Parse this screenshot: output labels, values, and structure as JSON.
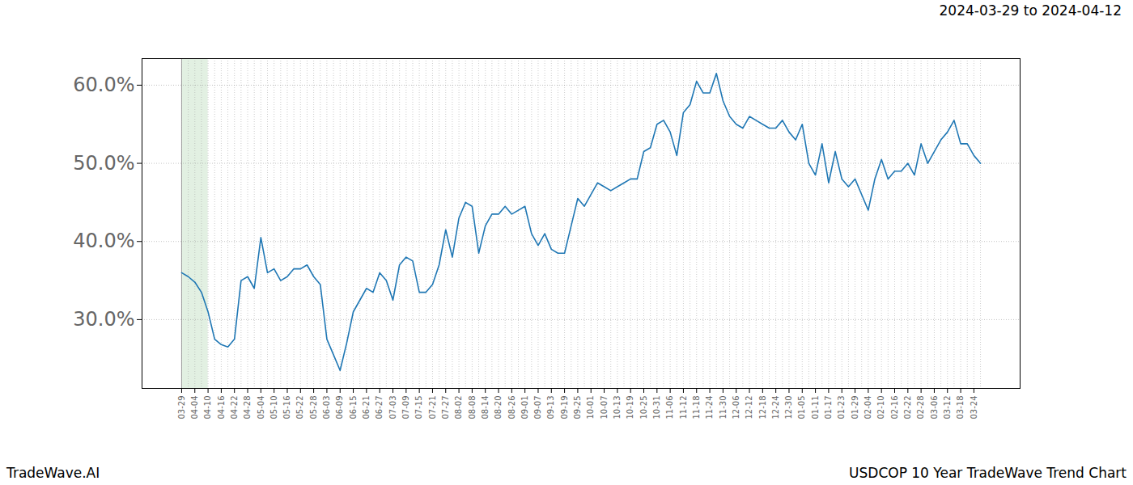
{
  "chart_data": {
    "type": "line",
    "title": "USDCOP 10 Year TradeWave Trend Chart",
    "subtitle": "2024-03-29 to 2024-04-12",
    "caption": "TradeWave.AI",
    "highlight_range": {
      "from": "03-29",
      "to": "04-10",
      "color": "#d5ead5"
    },
    "categories": [
      "03-29",
      null,
      "04-04",
      null,
      "04-10",
      null,
      "04-16",
      null,
      "04-22",
      null,
      "04-28",
      null,
      "05-04",
      null,
      "05-10",
      null,
      "05-16",
      null,
      "05-22",
      null,
      "05-28",
      null,
      "06-03",
      null,
      "06-09",
      null,
      "06-15",
      null,
      "06-21",
      null,
      "06-27",
      null,
      "07-03",
      null,
      "07-09",
      null,
      "07-15",
      null,
      "07-21",
      null,
      "07-27",
      null,
      "08-02",
      null,
      "08-08",
      null,
      "08-14",
      null,
      "08-20",
      null,
      "08-26",
      null,
      "09-01",
      null,
      "09-07",
      null,
      "09-13",
      null,
      "09-19",
      null,
      "09-25",
      null,
      "10-01",
      null,
      "10-07",
      null,
      "10-13",
      null,
      "10-19",
      null,
      "10-25",
      null,
      "10-31",
      null,
      "11-06",
      null,
      "11-12",
      null,
      "11-18",
      null,
      "11-24",
      null,
      "11-30",
      null,
      "12-06",
      null,
      "12-12",
      null,
      "12-18",
      null,
      "12-24",
      null,
      "12-30",
      null,
      "01-05",
      null,
      "01-11",
      null,
      "01-17",
      null,
      "01-23",
      null,
      "01-29",
      null,
      "02-04",
      null,
      "02-10",
      null,
      "02-16",
      null,
      "02-22",
      null,
      "02-28",
      null,
      "03-06",
      null,
      "03-12",
      null,
      "03-18",
      null,
      "03-24",
      null
    ],
    "values": [
      36,
      35.5,
      34.8,
      33.5,
      31,
      27.5,
      26.8,
      26.5,
      27.5,
      35,
      35.5,
      34,
      40.5,
      36,
      36.5,
      35,
      35.5,
      36.5,
      36.5,
      37,
      35.5,
      34.5,
      27.5,
      25.5,
      23.5,
      27,
      31,
      32.5,
      34,
      33.5,
      36,
      35,
      32.5,
      37,
      38,
      37.5,
      33.5,
      33.5,
      34.5,
      37,
      41.5,
      38,
      43,
      45,
      44.5,
      38.5,
      42,
      43.5,
      43.5,
      44.5,
      43.5,
      44,
      44.5,
      41,
      39.5,
      41,
      39,
      38.5,
      38.5,
      42,
      45.5,
      44.5,
      46,
      47.5,
      47,
      46.5,
      47,
      47.5,
      48,
      48,
      51.5,
      52,
      55,
      55.5,
      54,
      51,
      56.5,
      57.5,
      60.5,
      59,
      59,
      61.5,
      58,
      56,
      55,
      54.5,
      56,
      55.5,
      55,
      54.5,
      54.5,
      55.5,
      54,
      53,
      55,
      50,
      48.5,
      52.5,
      47.5,
      51.5,
      48,
      47,
      48,
      46,
      44,
      48,
      50.5,
      48,
      49,
      49,
      50,
      48.5,
      52.5,
      50,
      51.5,
      53,
      54,
      55.5,
      52.5,
      52.5,
      51,
      50
    ],
    "color": "#1f77b4",
    "ylim": [
      21.2,
      63.4
    ],
    "yticks": [
      {
        "value": 30,
        "label": "30.0%"
      },
      {
        "value": 40,
        "label": "40.0%"
      },
      {
        "value": 50,
        "label": "50.0%"
      },
      {
        "value": 60,
        "label": "60.0%"
      }
    ],
    "grid": true
  }
}
